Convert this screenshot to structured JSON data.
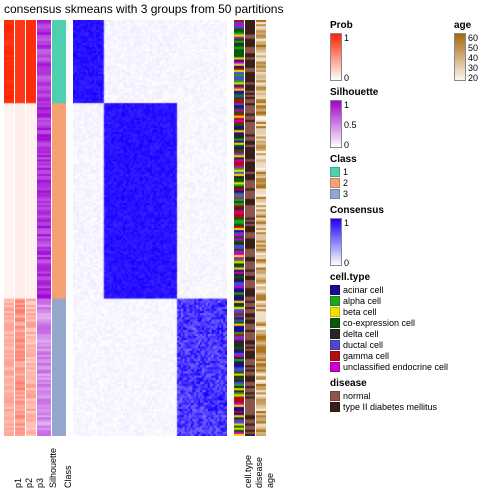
{
  "title": "consensus skmeans with 3 groups from 50 partitions",
  "tracks": [
    "p1",
    "p2",
    "p3",
    "Silhouette",
    "Class",
    "",
    "heatmap",
    "",
    "cell.type",
    "disease",
    "age"
  ],
  "heatmap_block_fracs": [
    0.2,
    0.47,
    0.33
  ],
  "colors": {
    "prob": [
      "#ffffff",
      "#ff2200"
    ],
    "silhouette": [
      "#ffffff",
      "#9e00d3"
    ],
    "consensus": [
      "#ffffff",
      "#1800ff"
    ],
    "class": {
      "1": "#4fd0b0",
      "2": "#f6a173",
      "3": "#95a7cc"
    },
    "age": [
      "#fef6ec",
      "#a5680a"
    ],
    "celltype": {
      "acinar cell": "#1c0b91",
      "alpha cell": "#1ca61c",
      "beta cell": "#f2e000",
      "co-expression cell": "#0a590a",
      "delta cell": "#262626",
      "ductal cell": "#4a4acc",
      "gamma cell": "#b30d0d",
      "unclassified endocrine cell": "#cc00cc"
    },
    "disease": {
      "normal": "#8c564b",
      "type II diabetes mellitus": "#3a1f18"
    }
  },
  "legends": {
    "prob": {
      "title": "Prob",
      "ticks": [
        "1",
        "0"
      ]
    },
    "silhouette": {
      "title": "Silhouette",
      "ticks": [
        "1",
        "0.5",
        "0"
      ]
    },
    "class": {
      "title": "Class",
      "cats": [
        "1",
        "2",
        "3"
      ]
    },
    "consensus": {
      "title": "Consensus",
      "ticks": [
        "1",
        "0"
      ]
    },
    "celltype": {
      "title": "cell.type",
      "cats": [
        "acinar cell",
        "alpha cell",
        "beta cell",
        "co-expression cell",
        "delta cell",
        "ductal cell",
        "gamma cell",
        "unclassified endocrine cell"
      ]
    },
    "disease": {
      "title": "disease",
      "cats": [
        "normal",
        "type II diabetes mellitus"
      ]
    },
    "age": {
      "title": "age",
      "ticks": [
        "60",
        "50",
        "40",
        "30",
        "20"
      ]
    }
  }
}
